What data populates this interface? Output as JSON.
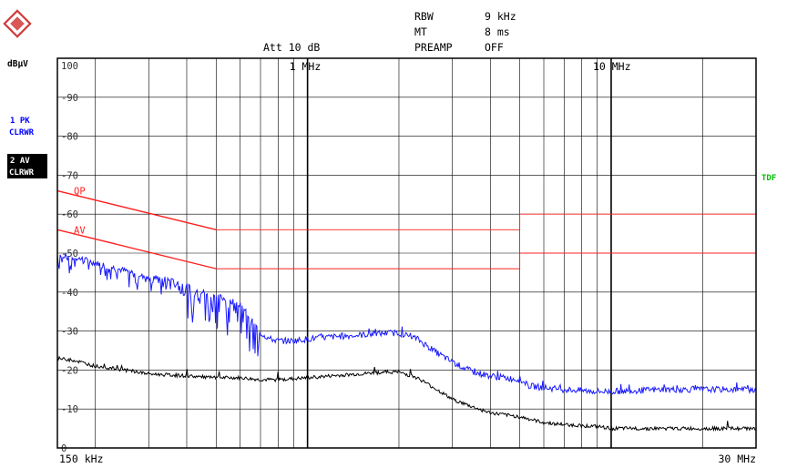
{
  "header": {
    "rbw_label": "RBW",
    "rbw_value": "9 kHz",
    "mt_label": "MT",
    "mt_value": "8 ms",
    "att_text": "Att 10 dB",
    "preamp_label": "PREAMP",
    "preamp_value": "OFF"
  },
  "side": {
    "unit": "dBµV",
    "trace1_line1": "1 PK",
    "trace1_line2": "CLRWR",
    "trace2_line1": "2 AV",
    "trace2_line2": "CLRWR",
    "tdf": "TDF"
  },
  "colors": {
    "trace1": "#1a1aff",
    "trace2": "#000000",
    "limit": "#ff2020",
    "tdf": "#00c000",
    "grid": "#000000",
    "side_blue": "#0000ff"
  },
  "chart_data": {
    "type": "line",
    "x_scale": "log",
    "xlim": [
      0.15,
      30
    ],
    "ylim": [
      0,
      100
    ],
    "y_ticks": [
      100,
      90,
      80,
      70,
      60,
      50,
      40,
      30,
      20,
      10,
      0
    ],
    "x_ticks": [
      {
        "value": 0.15,
        "label": "150 kHz"
      },
      {
        "value": 1,
        "label": "1 MHz"
      },
      {
        "value": 10,
        "label": "10 MHz"
      },
      {
        "value": 30,
        "label": "30 MHz"
      }
    ],
    "limit_lines": [
      {
        "name": "QP",
        "points": [
          [
            0.15,
            66
          ],
          [
            0.5,
            56
          ],
          [
            5,
            56
          ],
          [
            5,
            60
          ],
          [
            30,
            60
          ]
        ]
      },
      {
        "name": "AV",
        "points": [
          [
            0.15,
            56
          ],
          [
            0.5,
            46
          ],
          [
            5,
            46
          ],
          [
            5,
            50
          ],
          [
            30,
            50
          ]
        ]
      }
    ],
    "series": [
      {
        "trace": "1 PK",
        "points": [
          [
            0.15,
            49.5
          ],
          [
            0.17,
            49
          ],
          [
            0.2,
            47.5
          ],
          [
            0.25,
            45.5
          ],
          [
            0.3,
            44
          ],
          [
            0.35,
            43
          ],
          [
            0.4,
            41.5
          ],
          [
            0.45,
            40
          ],
          [
            0.5,
            39
          ],
          [
            0.55,
            38
          ],
          [
            0.6,
            37
          ],
          [
            0.65,
            33
          ],
          [
            0.7,
            29.5
          ],
          [
            0.75,
            28
          ],
          [
            0.8,
            27.5
          ],
          [
            0.9,
            27.5
          ],
          [
            1.0,
            28
          ],
          [
            1.2,
            28.5
          ],
          [
            1.5,
            29
          ],
          [
            1.8,
            29.5
          ],
          [
            2.0,
            29.5
          ],
          [
            2.3,
            28
          ],
          [
            2.6,
            25
          ],
          [
            3.0,
            22
          ],
          [
            3.5,
            19.5
          ],
          [
            4.0,
            18.5
          ],
          [
            5.0,
            17.5
          ],
          [
            5.3,
            16
          ],
          [
            6.0,
            15.5
          ],
          [
            7.0,
            15
          ],
          [
            9.0,
            14.5
          ],
          [
            10.0,
            14.5
          ],
          [
            15.0,
            15
          ],
          [
            20.0,
            15
          ],
          [
            30.0,
            15
          ]
        ]
      },
      {
        "trace": "2 AV",
        "points": [
          [
            0.15,
            23
          ],
          [
            0.17,
            22.5
          ],
          [
            0.2,
            21
          ],
          [
            0.25,
            20
          ],
          [
            0.3,
            19
          ],
          [
            0.4,
            18.5
          ],
          [
            0.5,
            18
          ],
          [
            0.6,
            18
          ],
          [
            0.7,
            17.5
          ],
          [
            0.8,
            17.5
          ],
          [
            1.0,
            18
          ],
          [
            1.2,
            18.5
          ],
          [
            1.5,
            19
          ],
          [
            1.8,
            19.5
          ],
          [
            2.0,
            19.5
          ],
          [
            2.3,
            18
          ],
          [
            2.6,
            15.5
          ],
          [
            3.0,
            12.5
          ],
          [
            3.5,
            10.5
          ],
          [
            4.0,
            9
          ],
          [
            5.0,
            8
          ],
          [
            6.0,
            6.5
          ],
          [
            7.0,
            6
          ],
          [
            9.0,
            5.5
          ],
          [
            10.0,
            5
          ],
          [
            15.0,
            5
          ],
          [
            20.0,
            5
          ],
          [
            30.0,
            5
          ]
        ]
      }
    ]
  }
}
